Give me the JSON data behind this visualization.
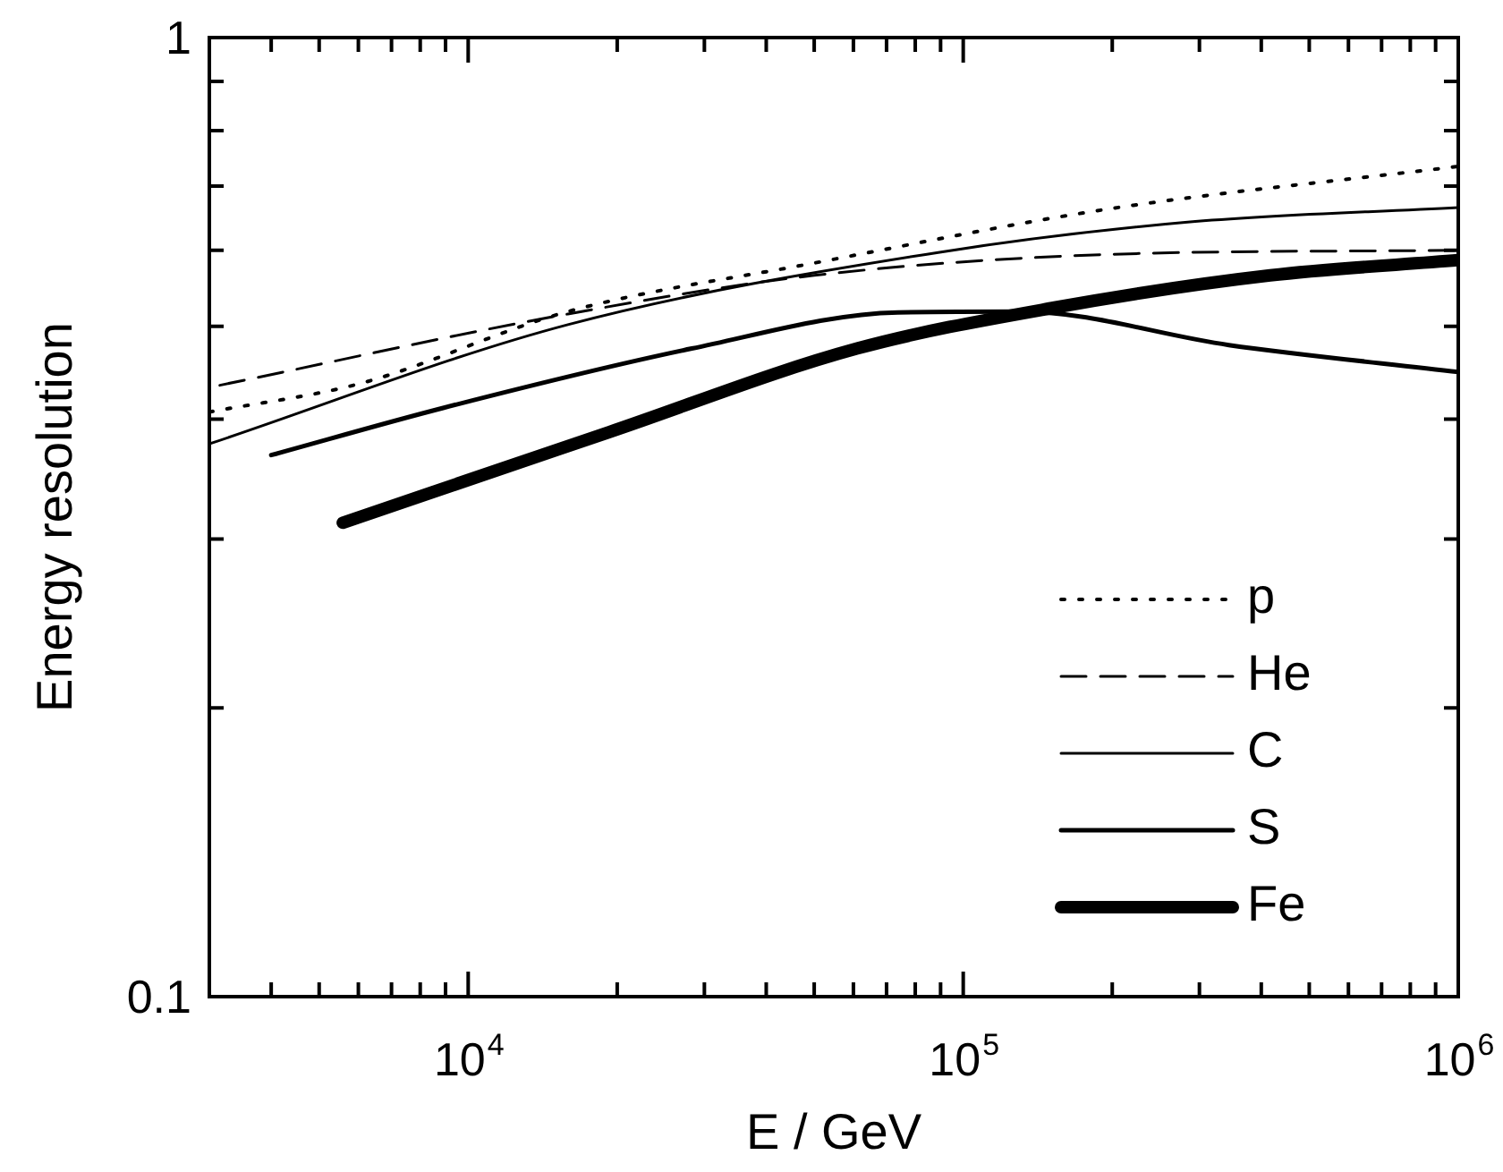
{
  "chart_data": {
    "type": "line",
    "xlabel": "E / GeV",
    "ylabel": "Energy resolution",
    "log": "xy",
    "marker": "none",
    "legend": "bottom right",
    "grid": false,
    "xlim": [
      3000,
      1000000
    ],
    "xticks": [
      {
        "value": 4000,
        "label": null
      },
      {
        "value": 5000,
        "label": null
      },
      {
        "value": 6000,
        "label": null
      },
      {
        "value": 7000,
        "label": null
      },
      {
        "value": 8000,
        "label": null
      },
      {
        "value": 9000,
        "label": null
      },
      {
        "value": 10000,
        "label": "10$^{4}$"
      },
      {
        "value": 20000,
        "label": null
      },
      {
        "value": 30000,
        "label": null
      },
      {
        "value": 40000,
        "label": null
      },
      {
        "value": 50000,
        "label": null
      },
      {
        "value": 60000,
        "label": null
      },
      {
        "value": 70000,
        "label": null
      },
      {
        "value": 80000,
        "label": null
      },
      {
        "value": 90000,
        "label": null
      },
      {
        "value": 100000,
        "label": "10$^{5}$"
      },
      {
        "value": 200000,
        "label": null
      },
      {
        "value": 300000,
        "label": null
      },
      {
        "value": 400000,
        "label": null
      },
      {
        "value": 500000,
        "label": null
      },
      {
        "value": 600000,
        "label": null
      },
      {
        "value": 700000,
        "label": null
      },
      {
        "value": 800000,
        "label": null
      },
      {
        "value": 900000,
        "label": null
      },
      {
        "value": 1000000,
        "label": "10$^{6}$"
      }
    ],
    "ylim": [
      0.1,
      1
    ],
    "yticks": [
      0.1,
      {
        "value": 0.2,
        "label": null
      },
      {
        "value": 0.3,
        "label": null
      },
      {
        "value": 0.4,
        "label": null
      },
      {
        "value": 0.5,
        "label": null
      },
      {
        "value": 0.6,
        "label": null
      },
      {
        "value": 0.7,
        "label": null
      },
      {
        "value": 0.8,
        "label": null
      },
      {
        "value": 0.9,
        "label": null
      },
      1
    ],
    "series": [
      {
        "name": "p",
        "color": "#000000",
        "line_style": "dotted",
        "x": [
          3000,
          6070,
          15900,
          50000,
          194000,
          1000000
        ],
        "values": [
          0.407,
          0.436,
          0.518,
          0.582,
          0.662,
          0.734
        ]
      },
      {
        "name": "He",
        "color": "#000000",
        "line_style": "dashed",
        "x": [
          3150,
          15900,
          50000,
          194000,
          1000000
        ],
        "values": [
          0.434,
          0.515,
          0.565,
          0.594,
          0.6
        ]
      },
      {
        "name": "C",
        "color": "#000000",
        "line_style": "solid",
        "x": [
          3000,
          15900,
          89000,
          284000,
          1000000
        ],
        "values": [
          0.377,
          0.502,
          0.597,
          0.642,
          0.665
        ]
      },
      {
        "name": "S",
        "color": "#000000",
        "line_style": "solid",
        "x": [
          4000,
          8900,
          28300,
          73800,
          131000,
          344000,
          1000000
        ],
        "values": [
          0.367,
          0.411,
          0.474,
          0.517,
          0.518,
          0.478,
          0.448
        ]
      },
      {
        "name": "Fe",
        "color": "#000000",
        "line_style": "solid",
        "x": [
          5580,
          19300,
          61000,
          153000,
          417000,
          1000000
        ],
        "values": [
          0.312,
          0.388,
          0.474,
          0.523,
          0.565,
          0.586
        ]
      }
    ]
  }
}
